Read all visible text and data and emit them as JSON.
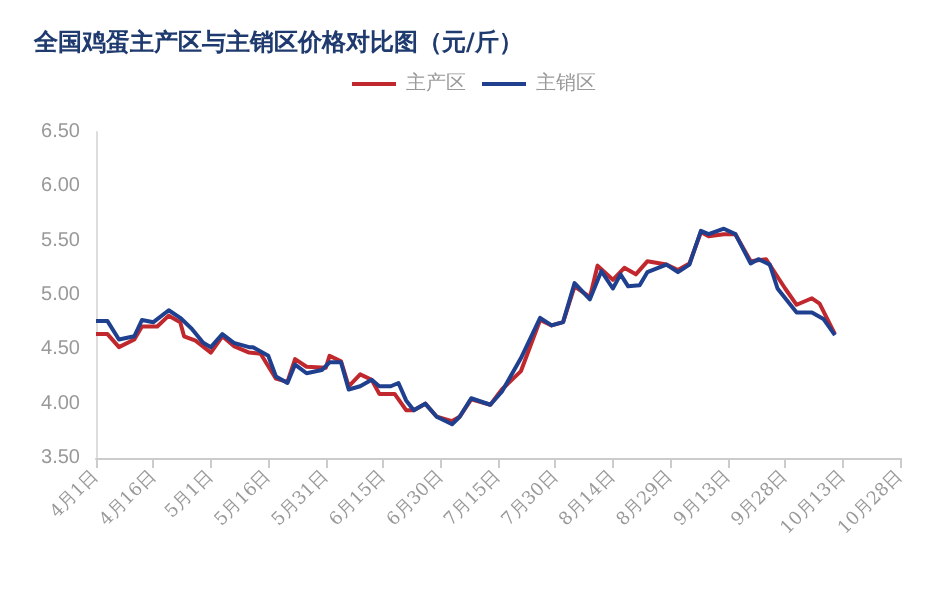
{
  "chart_data": {
    "type": "line",
    "title": "全国鸡蛋主产区与主销区价格对比图（元/斤）",
    "legend": "top",
    "marker": "none",
    "line_style": "solid",
    "grid": false,
    "xlim": [
      "--04-01",
      "--10-28"
    ],
    "xticks": [
      {
        "value": "--04-01",
        "label": "4月1日"
      },
      {
        "value": "--04-16",
        "label": "4月16日"
      },
      {
        "value": "--05-01",
        "label": "5月1日"
      },
      {
        "value": "--05-16",
        "label": "5月16日"
      },
      {
        "value": "--05-31",
        "label": "5月31日"
      },
      {
        "value": "--06-15",
        "label": "6月15日"
      },
      {
        "value": "--06-30",
        "label": "6月30日"
      },
      {
        "value": "--07-15",
        "label": "7月15日"
      },
      {
        "value": "--07-30",
        "label": "7月30日"
      },
      {
        "value": "--08-14",
        "label": "8月14日"
      },
      {
        "value": "--08-29",
        "label": "8月29日"
      },
      {
        "value": "--09-13",
        "label": "9月13日"
      },
      {
        "value": "--09-28",
        "label": "9月28日"
      },
      {
        "value": "--10-13",
        "label": "10月13日"
      },
      {
        "value": "--10-28",
        "label": "10月28日"
      }
    ],
    "ylim": [
      3.5,
      6.5
    ],
    "yticks": [
      {
        "value": 3.5,
        "label": "3.50"
      },
      {
        "value": 4,
        "label": "4.00"
      },
      {
        "value": 4.5,
        "label": "4.50"
      },
      {
        "value": 5,
        "label": "5.00"
      },
      {
        "value": 5.5,
        "label": "5.50"
      },
      {
        "value": 6,
        "label": "6.00"
      },
      {
        "value": 6.5,
        "label": "6.50"
      }
    ],
    "series": [
      {
        "name": "主产区",
        "color": "#c0282d",
        "x": [
          "--04-01",
          "--04-04",
          "--04-07",
          "--04-11",
          "--04-13",
          "--04-17",
          "--04-20",
          "--04-23",
          "--04-24",
          "--04-27",
          "--05-01",
          "--05-04",
          "--05-07",
          "--05-11",
          "--05-14",
          "--05-18",
          "--05-21",
          "--05-23",
          "--05-26",
          "--05-31",
          "--06-01",
          "--06-04",
          "--06-06",
          "--06-09",
          "--06-12",
          "--06-14",
          "--06-18",
          "--06-21",
          "--06-23",
          "--06-26",
          "--06-29",
          "--07-03",
          "--07-05",
          "--07-08",
          "--07-13",
          "--07-16",
          "--07-21",
          "--07-26",
          "--07-29",
          "--08-01",
          "--08-04",
          "--08-08",
          "--08-10",
          "--08-14",
          "--08-17",
          "--08-20",
          "--08-23",
          "--08-28",
          "--08-31",
          "--09-03",
          "--09-06",
          "--09-08",
          "--09-12",
          "--09-15",
          "--09-19",
          "--09-23",
          "--09-28",
          "--10-01",
          "--10-05",
          "--10-07",
          "--10-11"
        ],
        "values": [
          4.64,
          4.64,
          4.52,
          4.59,
          4.71,
          4.71,
          4.81,
          4.75,
          4.62,
          4.58,
          4.47,
          4.62,
          4.53,
          4.47,
          4.46,
          4.23,
          4.2,
          4.41,
          4.34,
          4.33,
          4.44,
          4.39,
          4.16,
          4.27,
          4.22,
          4.09,
          4.09,
          3.94,
          3.94,
          4.0,
          3.88,
          3.84,
          3.88,
          4.04,
          3.99,
          4.13,
          4.3,
          4.77,
          4.72,
          4.75,
          5.08,
          4.98,
          5.27,
          5.14,
          5.25,
          5.19,
          5.31,
          5.28,
          5.23,
          5.29,
          5.58,
          5.54,
          5.56,
          5.56,
          5.31,
          5.33,
          5.06,
          4.91,
          4.97,
          4.92,
          4.64
        ]
      },
      {
        "name": "主销区",
        "color": "#1f3f8f",
        "x": [
          "--04-01",
          "--04-04",
          "--04-07",
          "--04-11",
          "--04-13",
          "--04-16",
          "--04-20",
          "--04-23",
          "--04-26",
          "--04-29",
          "--05-01",
          "--05-04",
          "--05-07",
          "--05-11",
          "--05-12",
          "--05-16",
          "--05-18",
          "--05-21",
          "--05-23",
          "--05-26",
          "--05-30",
          "--06-01",
          "--06-04",
          "--06-06",
          "--06-09",
          "--06-12",
          "--06-14",
          "--06-17",
          "--06-19",
          "--06-21",
          "--06-23",
          "--06-26",
          "--06-29",
          "--07-03",
          "--07-05",
          "--07-08",
          "--07-13",
          "--07-16",
          "--07-21",
          "--07-26",
          "--07-29",
          "--08-01",
          "--08-04",
          "--08-08",
          "--08-11",
          "--08-14",
          "--08-16",
          "--08-18",
          "--08-21",
          "--08-23",
          "--08-28",
          "--08-31",
          "--09-03",
          "--09-06",
          "--09-08",
          "--09-12",
          "--09-15",
          "--09-19",
          "--09-21",
          "--09-24",
          "--09-26",
          "--10-01",
          "--10-05",
          "--10-08",
          "--10-11"
        ],
        "values": [
          4.76,
          4.76,
          4.59,
          4.62,
          4.77,
          4.75,
          4.86,
          4.79,
          4.69,
          4.56,
          4.52,
          4.64,
          4.56,
          4.52,
          4.52,
          4.44,
          4.25,
          4.19,
          4.36,
          4.28,
          4.31,
          4.38,
          4.38,
          4.13,
          4.16,
          4.22,
          4.16,
          4.16,
          4.19,
          4.03,
          3.94,
          4.0,
          3.88,
          3.81,
          3.88,
          4.05,
          3.99,
          4.11,
          4.42,
          4.79,
          4.72,
          4.75,
          5.11,
          4.96,
          5.22,
          5.06,
          5.19,
          5.08,
          5.09,
          5.21,
          5.28,
          5.21,
          5.28,
          5.59,
          5.56,
          5.61,
          5.56,
          5.29,
          5.33,
          5.28,
          5.06,
          4.84,
          4.84,
          4.78,
          4.63
        ]
      }
    ]
  }
}
